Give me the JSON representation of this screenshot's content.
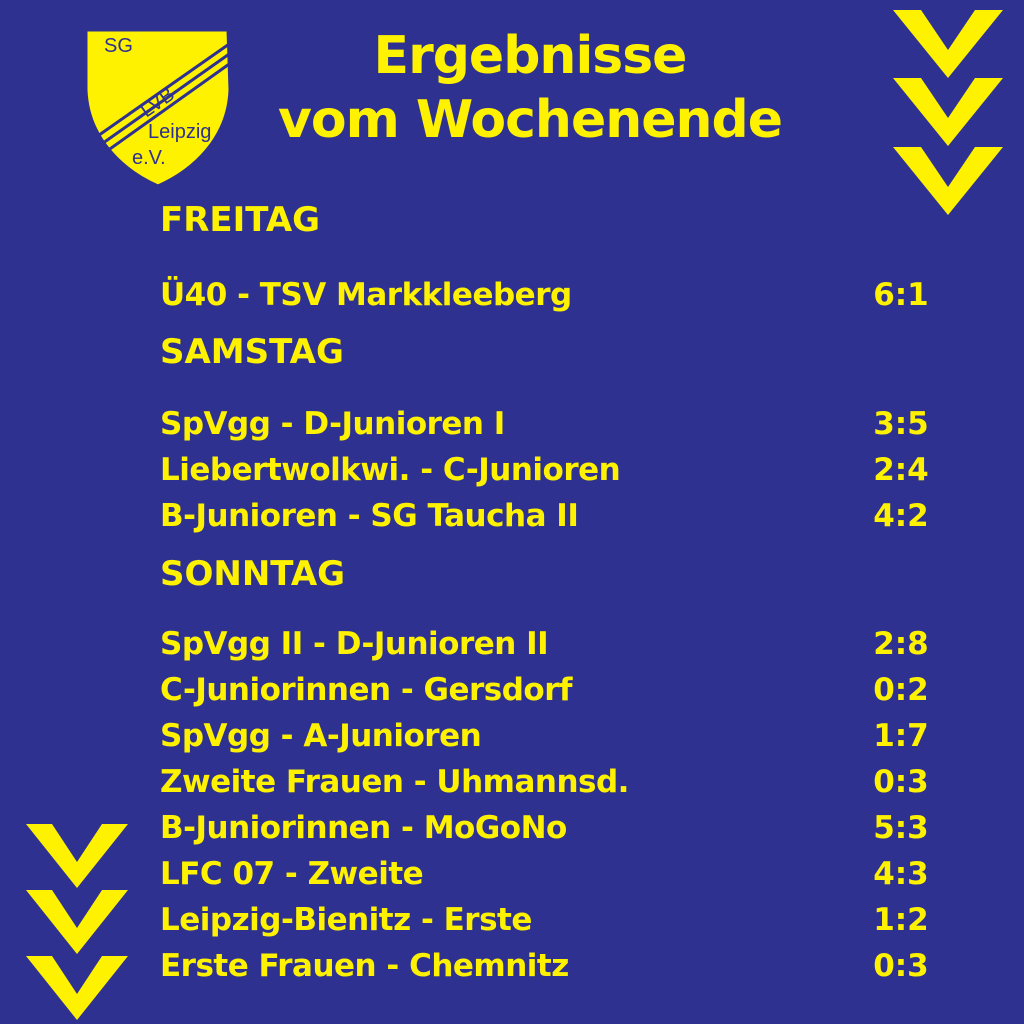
{
  "logo": {
    "sg": "SG",
    "lvb": "LVB",
    "city": "Leipzig",
    "ev": "e.V."
  },
  "title": {
    "line1": "Ergebnisse",
    "line2": "vom Wochenende"
  },
  "colors": {
    "background": "#2e3190",
    "accent": "#fff200"
  },
  "icons": {
    "top": "chevron-down-triple-icon",
    "bottom": "chevron-down-triple-icon"
  },
  "days": [
    {
      "label": "FREITAG",
      "matches": [
        {
          "match": "Ü40 - TSV Markkleeberg",
          "score": "6:1"
        }
      ]
    },
    {
      "label": "SAMSTAG",
      "matches": [
        {
          "match": "SpVgg - D-Junioren I",
          "score": "3:5"
        },
        {
          "match": "Liebertwolkwi. - C-Junioren",
          "score": "2:4"
        },
        {
          "match": "B-Junioren - SG Taucha II",
          "score": "4:2"
        }
      ]
    },
    {
      "label": "SONNTAG",
      "matches": [
        {
          "match": "SpVgg II - D-Junioren II",
          "score": "2:8"
        },
        {
          "match": "C-Juniorinnen - Gersdorf",
          "score": "0:2"
        },
        {
          "match": "SpVgg - A-Junioren",
          "score": "1:7"
        },
        {
          "match": "Zweite Frauen - Uhmannsd.",
          "score": "0:3"
        },
        {
          "match": "B-Juniorinnen - MoGoNo",
          "score": "5:3"
        },
        {
          "match": "LFC 07 - Zweite",
          "score": "4:3"
        },
        {
          "match": "Leipzig-Bienitz - Erste",
          "score": "1:2"
        },
        {
          "match": "Erste Frauen - Chemnitz",
          "score": "0:3"
        }
      ]
    }
  ]
}
